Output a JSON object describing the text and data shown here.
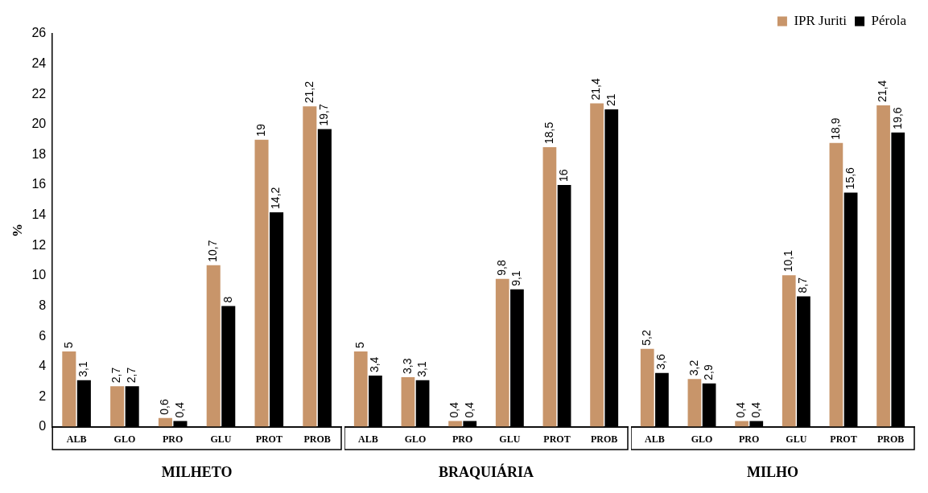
{
  "chart_data": [
    {
      "type": "bar",
      "xlabel": "MILHETO",
      "ylabel": "%",
      "categories": [
        "ALB",
        "GLO",
        "PRO",
        "GLU",
        "PROT",
        "PROB"
      ],
      "ylim": [
        0,
        26
      ],
      "yticks": [
        0,
        2,
        4,
        6,
        8,
        10,
        12,
        14,
        16,
        18,
        20,
        22,
        24,
        26
      ],
      "series": [
        {
          "color": "#c8956a",
          "values": [
            5,
            2.7,
            0.6,
            10.7,
            19,
            21.2
          ],
          "value_labels": [
            "5",
            "2,7",
            "0,6",
            "10,7",
            "19",
            "21,2"
          ]
        },
        {
          "color": "#000000",
          "values": [
            3.1,
            2.7,
            0.4,
            8,
            14.2,
            19.7
          ],
          "value_labels": [
            "3,1",
            "2,7",
            "0,4",
            "8",
            "14,2",
            "19,7"
          ]
        }
      ]
    },
    {
      "type": "bar",
      "xlabel": "BRAQUIÁRIA",
      "categories": [
        "ALB",
        "GLO",
        "PRO",
        "GLU",
        "PROT",
        "PROB"
      ],
      "ylim": [
        0,
        26
      ],
      "yticks": [
        0,
        2,
        4,
        6,
        8,
        10,
        12,
        14,
        16,
        18,
        20,
        22,
        24,
        26
      ],
      "tick_labels": "x",
      "series": [
        {
          "color": "#c8956a",
          "values": [
            5,
            3.3,
            0.4,
            9.8,
            18.5,
            21.4
          ],
          "value_labels": [
            "5",
            "3,3",
            "0,4",
            "9,8",
            "18,5",
            "21,4"
          ]
        },
        {
          "color": "#000000",
          "values": [
            3.4,
            3.1,
            0.4,
            9.1,
            16,
            21
          ],
          "value_labels": [
            "3,4",
            "3,1",
            "0,4",
            "9,1",
            "16",
            "21"
          ]
        }
      ]
    },
    {
      "type": "bar",
      "xlabel": "MILHO",
      "categories": [
        "ALB",
        "GLO",
        "PRO",
        "GLU",
        "PROT",
        "PROB"
      ],
      "ylim": [
        0,
        26
      ],
      "yticks": [
        0,
        2,
        4,
        6,
        8,
        10,
        12,
        14,
        16,
        18,
        20,
        22,
        24,
        26
      ],
      "tick_labels": "x",
      "legend": "top right",
      "series": [
        {
          "name": "IPR Juriti",
          "color": "#c8956a",
          "values": [
            5.2,
            3.2,
            0.4,
            10.1,
            18.9,
            21.4
          ],
          "value_labels": [
            "5,2",
            "3,2",
            "0,4",
            "10,1",
            "18,9",
            "21,4"
          ]
        },
        {
          "name": "Pérola",
          "color": "#000000",
          "values": [
            3.6,
            2.9,
            0.4,
            8.7,
            15.6,
            19.6
          ],
          "value_labels": [
            "3,6",
            "2,9",
            "0,4",
            "8,7",
            "15,6",
            "19,6"
          ]
        }
      ]
    }
  ]
}
